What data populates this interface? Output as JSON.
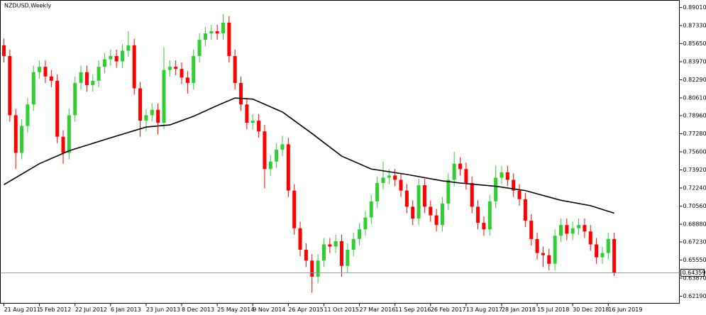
{
  "chart_data": {
    "type": "candlestick",
    "title": "NZDUSD,Weekly",
    "up_color": "#32cd32",
    "down_color": "#ff0000",
    "open": [
      0.855,
      0.845,
      0.79,
      0.755,
      0.78,
      0.8,
      0.83,
      0.835,
      0.826,
      0.822,
      0.77,
      0.755,
      0.79,
      0.82,
      0.83,
      0.818,
      0.822,
      0.835,
      0.842,
      0.845,
      0.84,
      0.85,
      0.855,
      0.815,
      0.785,
      0.79,
      0.795,
      0.783,
      0.832,
      0.835,
      0.833,
      0.825,
      0.82,
      0.845,
      0.86,
      0.866,
      0.868,
      0.866,
      0.876,
      0.845,
      0.82,
      0.8,
      0.783,
      0.785,
      0.775,
      0.74,
      0.747,
      0.758,
      0.763,
      0.72,
      0.685,
      0.665,
      0.655,
      0.64,
      0.655,
      0.67,
      0.668,
      0.673,
      0.65,
      0.665,
      0.675,
      0.684,
      0.695,
      0.71,
      0.727,
      0.732,
      0.734,
      0.73,
      0.72,
      0.705,
      0.694,
      0.725,
      0.705,
      0.697,
      0.688,
      0.708,
      0.73,
      0.745,
      0.74,
      0.727,
      0.705,
      0.69,
      0.684,
      0.71,
      0.732,
      0.737,
      0.73,
      0.72,
      0.712,
      0.692,
      0.675,
      0.662,
      0.66,
      0.652,
      0.678,
      0.688,
      0.68,
      0.685,
      0.688,
      0.682,
      0.67,
      0.658,
      0.662,
      0.675
    ],
    "high": [
      0.861,
      0.851,
      0.796,
      0.786,
      0.806,
      0.836,
      0.841,
      0.841,
      0.832,
      0.828,
      0.776,
      0.796,
      0.826,
      0.836,
      0.836,
      0.828,
      0.841,
      0.848,
      0.851,
      0.851,
      0.856,
      0.868,
      0.861,
      0.821,
      0.796,
      0.801,
      0.801,
      0.853,
      0.841,
      0.841,
      0.839,
      0.831,
      0.851,
      0.866,
      0.872,
      0.874,
      0.874,
      0.884,
      0.882,
      0.851,
      0.826,
      0.806,
      0.791,
      0.791,
      0.781,
      0.753,
      0.764,
      0.771,
      0.769,
      0.726,
      0.691,
      0.671,
      0.661,
      0.661,
      0.676,
      0.676,
      0.679,
      0.679,
      0.671,
      0.681,
      0.69,
      0.701,
      0.716,
      0.733,
      0.747,
      0.74,
      0.74,
      0.736,
      0.726,
      0.711,
      0.731,
      0.731,
      0.711,
      0.703,
      0.714,
      0.736,
      0.756,
      0.751,
      0.746,
      0.733,
      0.711,
      0.696,
      0.716,
      0.743,
      0.743,
      0.743,
      0.736,
      0.726,
      0.718,
      0.698,
      0.681,
      0.668,
      0.666,
      0.684,
      0.694,
      0.694,
      0.691,
      0.694,
      0.694,
      0.688,
      0.676,
      0.668,
      0.681,
      0.681
    ],
    "low": [
      0.839,
      0.784,
      0.74,
      0.749,
      0.774,
      0.794,
      0.824,
      0.82,
      0.816,
      0.764,
      0.745,
      0.749,
      0.784,
      0.814,
      0.812,
      0.812,
      0.816,
      0.829,
      0.836,
      0.834,
      0.834,
      0.844,
      0.809,
      0.77,
      0.775,
      0.784,
      0.772,
      0.777,
      0.826,
      0.827,
      0.819,
      0.81,
      0.814,
      0.839,
      0.854,
      0.86,
      0.86,
      0.86,
      0.839,
      0.814,
      0.794,
      0.777,
      0.777,
      0.769,
      0.722,
      0.734,
      0.741,
      0.752,
      0.714,
      0.679,
      0.659,
      0.649,
      0.625,
      0.634,
      0.649,
      0.662,
      0.662,
      0.64,
      0.644,
      0.659,
      0.669,
      0.678,
      0.689,
      0.704,
      0.721,
      0.726,
      0.724,
      0.714,
      0.699,
      0.688,
      0.688,
      0.699,
      0.691,
      0.682,
      0.682,
      0.702,
      0.724,
      0.734,
      0.721,
      0.699,
      0.684,
      0.678,
      0.678,
      0.704,
      0.726,
      0.724,
      0.714,
      0.706,
      0.686,
      0.669,
      0.656,
      0.649,
      0.646,
      0.646,
      0.672,
      0.674,
      0.674,
      0.679,
      0.676,
      0.664,
      0.652,
      0.652,
      0.656,
      0.6406
    ],
    "close": [
      0.845,
      0.79,
      0.755,
      0.78,
      0.8,
      0.83,
      0.835,
      0.826,
      0.822,
      0.77,
      0.755,
      0.79,
      0.82,
      0.83,
      0.818,
      0.822,
      0.835,
      0.842,
      0.845,
      0.84,
      0.85,
      0.855,
      0.815,
      0.785,
      0.79,
      0.795,
      0.783,
      0.832,
      0.835,
      0.833,
      0.825,
      0.82,
      0.845,
      0.86,
      0.866,
      0.868,
      0.866,
      0.876,
      0.845,
      0.82,
      0.8,
      0.783,
      0.785,
      0.775,
      0.74,
      0.747,
      0.758,
      0.763,
      0.72,
      0.685,
      0.665,
      0.655,
      0.64,
      0.655,
      0.67,
      0.668,
      0.673,
      0.65,
      0.665,
      0.675,
      0.684,
      0.695,
      0.71,
      0.727,
      0.732,
      0.734,
      0.73,
      0.72,
      0.705,
      0.694,
      0.725,
      0.705,
      0.697,
      0.688,
      0.708,
      0.73,
      0.745,
      0.74,
      0.727,
      0.705,
      0.69,
      0.684,
      0.71,
      0.732,
      0.737,
      0.73,
      0.72,
      0.712,
      0.692,
      0.675,
      0.662,
      0.66,
      0.652,
      0.678,
      0.688,
      0.68,
      0.685,
      0.688,
      0.682,
      0.67,
      0.658,
      0.662,
      0.675,
      0.64359
    ],
    "ma": {
      "color": "#000000",
      "x": [
        0,
        6,
        11,
        18,
        24,
        28,
        32,
        36,
        39,
        42,
        47,
        52,
        57,
        62,
        68,
        74,
        77,
        83,
        88,
        94,
        99,
        103
      ],
      "values": [
        0.7255,
        0.745,
        0.757,
        0.769,
        0.779,
        0.781,
        0.789,
        0.799,
        0.806,
        0.805,
        0.793,
        0.773,
        0.752,
        0.74,
        0.735,
        0.729,
        0.727,
        0.724,
        0.72,
        0.711,
        0.706,
        0.699
      ]
    },
    "last_price": {
      "value": 0.64359,
      "label": "0.64359"
    },
    "xlim": [
      -0.6,
      114
    ],
    "xticks": [
      {
        "value": 0,
        "label": "21 Aug 2011"
      },
      {
        "value": 6,
        "label": "5 Feb 2012"
      },
      {
        "value": 12,
        "label": "22 Jul 2012"
      },
      {
        "value": 18,
        "label": "6 Jan 2013"
      },
      {
        "value": 24,
        "label": "23 Jun 2013"
      },
      {
        "value": 30,
        "label": "8 Dec 2013"
      },
      {
        "value": 36,
        "label": "25 May 2014"
      },
      {
        "value": 42,
        "label": "9 Nov 2014"
      },
      {
        "value": 48,
        "label": "26 Apr 2015"
      },
      {
        "value": 54,
        "label": "11 Oct 2015"
      },
      {
        "value": 60,
        "label": "27 Mar 2016"
      },
      {
        "value": 66,
        "label": "11 Sep 2016"
      },
      {
        "value": 72,
        "label": "26 Feb 2017"
      },
      {
        "value": 78,
        "label": "13 Aug 2017"
      },
      {
        "value": 84,
        "label": "28 Jan 2018"
      },
      {
        "value": 90,
        "label": "15 Jul 2018"
      },
      {
        "value": 96,
        "label": "30 Dec 2018"
      },
      {
        "value": 102,
        "label": "16 Jun 2019"
      }
    ],
    "ylim": [
      0.6153,
      0.8967
    ],
    "yticks": [
      {
        "value": 0.8901,
        "label": "0.89010"
      },
      {
        "value": 0.8733,
        "label": "0.87330"
      },
      {
        "value": 0.8565,
        "label": "0.85650"
      },
      {
        "value": 0.8397,
        "label": "0.83970"
      },
      {
        "value": 0.8229,
        "label": "0.82290"
      },
      {
        "value": 0.8061,
        "label": "0.80610"
      },
      {
        "value": 0.7896,
        "label": "0.78960"
      },
      {
        "value": 0.7728,
        "label": "0.77280"
      },
      {
        "value": 0.756,
        "label": "0.75600"
      },
      {
        "value": 0.7392,
        "label": "0.73920"
      },
      {
        "value": 0.7224,
        "label": "0.72240"
      },
      {
        "value": 0.7056,
        "label": "0.70560"
      },
      {
        "value": 0.6888,
        "label": "0.68880"
      },
      {
        "value": 0.6723,
        "label": "0.67230"
      },
      {
        "value": 0.6555,
        "label": "0.65550"
      },
      {
        "value": 0.6387,
        "label": "0.63870"
      },
      {
        "value": 0.6219,
        "label": "0.62190"
      }
    ]
  }
}
